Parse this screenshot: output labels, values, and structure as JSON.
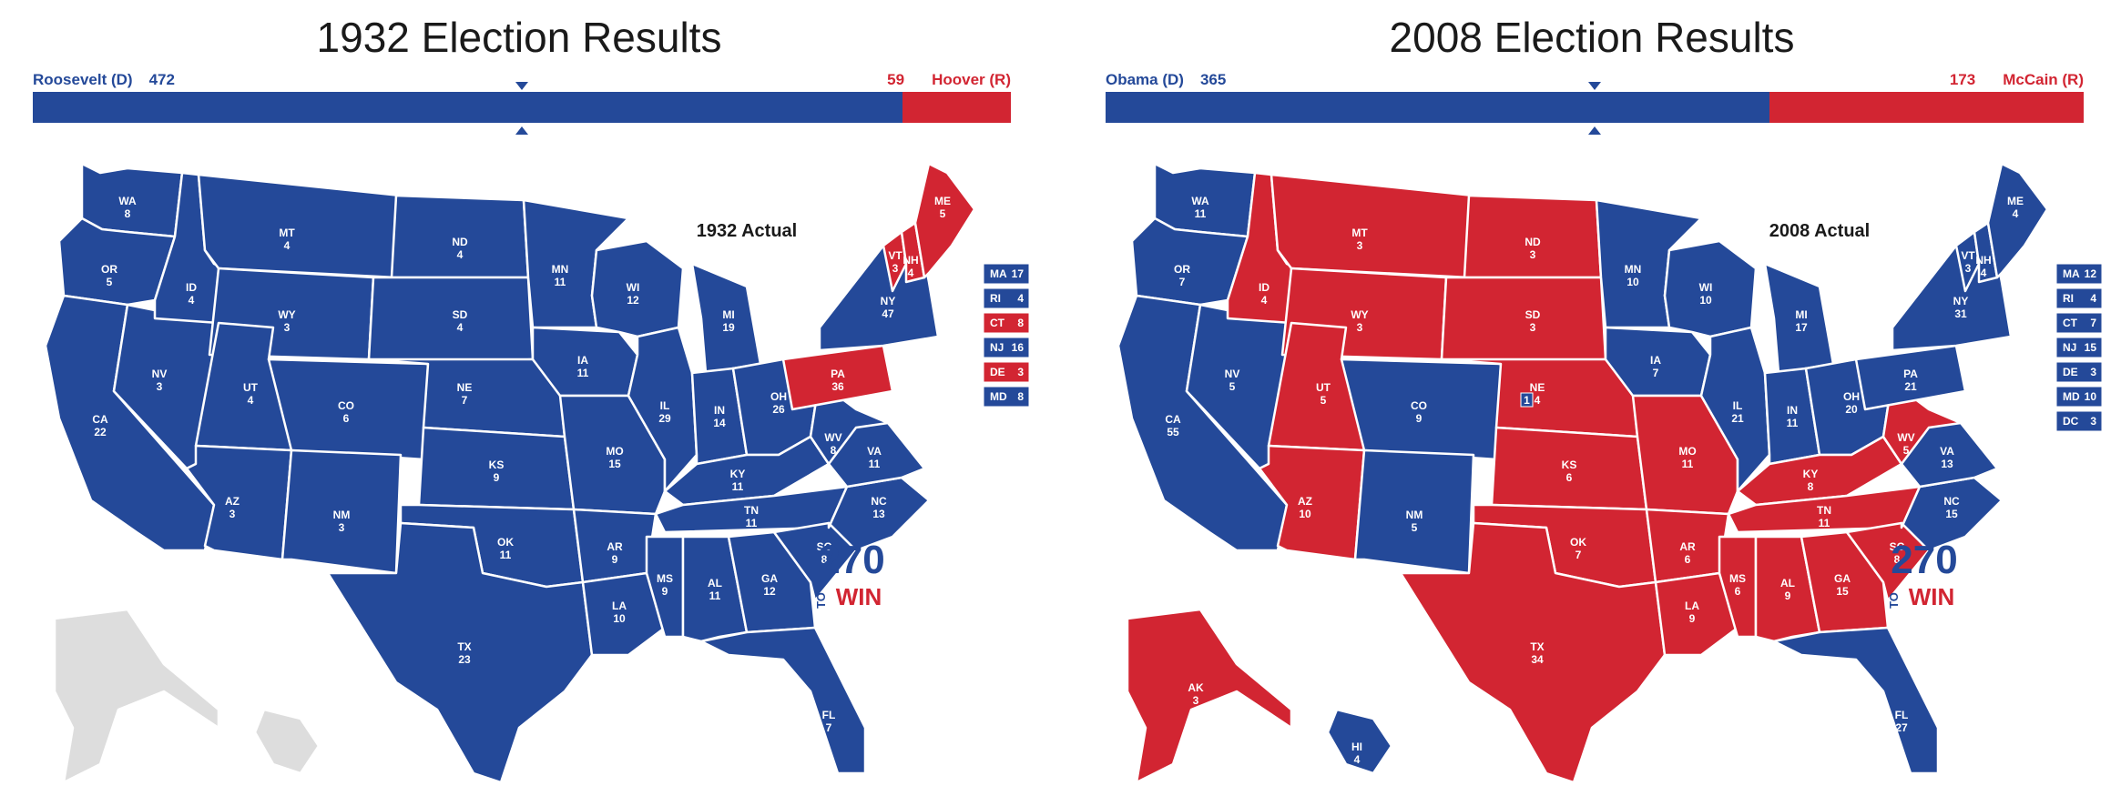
{
  "colors": {
    "dem": "#244999",
    "rep": "#d22532",
    "none": "#dddddd"
  },
  "maps": [
    {
      "title": "1932 Election Results",
      "dem_label": "Roosevelt (D)",
      "dem_votes": "472",
      "rep_label": "Hoover (R)",
      "rep_votes": "59",
      "dem_total": 472,
      "rep_total": 59,
      "actual_label": "1932 Actual",
      "states": {
        "WA": {
          "winner": "D",
          "ev": "8"
        },
        "OR": {
          "winner": "D",
          "ev": "5"
        },
        "CA": {
          "winner": "D",
          "ev": "22"
        },
        "ID": {
          "winner": "D",
          "ev": "4"
        },
        "NV": {
          "winner": "D",
          "ev": "3"
        },
        "MT": {
          "winner": "D",
          "ev": "4"
        },
        "WY": {
          "winner": "D",
          "ev": "3"
        },
        "UT": {
          "winner": "D",
          "ev": "4"
        },
        "AZ": {
          "winner": "D",
          "ev": "3"
        },
        "CO": {
          "winner": "D",
          "ev": "6"
        },
        "NM": {
          "winner": "D",
          "ev": "3"
        },
        "ND": {
          "winner": "D",
          "ev": "4"
        },
        "SD": {
          "winner": "D",
          "ev": "4"
        },
        "NE": {
          "winner": "D",
          "ev": "7"
        },
        "KS": {
          "winner": "D",
          "ev": "9"
        },
        "OK": {
          "winner": "D",
          "ev": "11"
        },
        "TX": {
          "winner": "D",
          "ev": "23"
        },
        "MN": {
          "winner": "D",
          "ev": "11"
        },
        "IA": {
          "winner": "D",
          "ev": "11"
        },
        "MO": {
          "winner": "D",
          "ev": "15"
        },
        "AR": {
          "winner": "D",
          "ev": "9"
        },
        "LA": {
          "winner": "D",
          "ev": "10"
        },
        "WI": {
          "winner": "D",
          "ev": "12"
        },
        "IL": {
          "winner": "D",
          "ev": "29"
        },
        "MI": {
          "winner": "D",
          "ev": "19"
        },
        "IN": {
          "winner": "D",
          "ev": "14"
        },
        "OH": {
          "winner": "D",
          "ev": "26"
        },
        "KY": {
          "winner": "D",
          "ev": "11"
        },
        "TN": {
          "winner": "D",
          "ev": "11"
        },
        "MS": {
          "winner": "D",
          "ev": "9"
        },
        "AL": {
          "winner": "D",
          "ev": "11"
        },
        "GA": {
          "winner": "D",
          "ev": "12"
        },
        "FL": {
          "winner": "D",
          "ev": "7"
        },
        "SC": {
          "winner": "D",
          "ev": "8"
        },
        "NC": {
          "winner": "D",
          "ev": "13"
        },
        "VA": {
          "winner": "D",
          "ev": "11"
        },
        "WV": {
          "winner": "D",
          "ev": "8"
        },
        "PA": {
          "winner": "R",
          "ev": "36"
        },
        "NY": {
          "winner": "D",
          "ev": "47"
        },
        "VT": {
          "winner": "R",
          "ev": "3"
        },
        "NH": {
          "winner": "R",
          "ev": "4"
        },
        "ME": {
          "winner": "R",
          "ev": "5"
        },
        "AK": {
          "winner": "none",
          "ev": ""
        },
        "HI": {
          "winner": "none",
          "ev": ""
        }
      },
      "small_states": [
        {
          "name": "MA",
          "ev": "17",
          "winner": "D"
        },
        {
          "name": "RI",
          "ev": "4",
          "winner": "D"
        },
        {
          "name": "CT",
          "ev": "8",
          "winner": "R"
        },
        {
          "name": "NJ",
          "ev": "16",
          "winner": "D"
        },
        {
          "name": "DE",
          "ev": "3",
          "winner": "R"
        },
        {
          "name": "MD",
          "ev": "8",
          "winner": "D"
        }
      ],
      "logo": {
        "number": "270",
        "to": "TO",
        "win": "WIN"
      }
    },
    {
      "title": "2008 Election Results",
      "dem_label": "Obama (D)",
      "dem_votes": "365",
      "rep_label": "McCain (R)",
      "rep_votes": "173",
      "dem_total": 365,
      "rep_total": 173,
      "actual_label": "2008 Actual",
      "states": {
        "WA": {
          "winner": "D",
          "ev": "11"
        },
        "OR": {
          "winner": "D",
          "ev": "7"
        },
        "CA": {
          "winner": "D",
          "ev": "55"
        },
        "ID": {
          "winner": "R",
          "ev": "4"
        },
        "NV": {
          "winner": "D",
          "ev": "5"
        },
        "MT": {
          "winner": "R",
          "ev": "3"
        },
        "WY": {
          "winner": "R",
          "ev": "3"
        },
        "UT": {
          "winner": "R",
          "ev": "5"
        },
        "AZ": {
          "winner": "R",
          "ev": "10"
        },
        "CO": {
          "winner": "D",
          "ev": "9"
        },
        "NM": {
          "winner": "D",
          "ev": "5"
        },
        "ND": {
          "winner": "R",
          "ev": "3"
        },
        "SD": {
          "winner": "R",
          "ev": "3"
        },
        "NE": {
          "winner": "R",
          "ev": "4",
          "split": "1"
        },
        "KS": {
          "winner": "R",
          "ev": "6"
        },
        "OK": {
          "winner": "R",
          "ev": "7"
        },
        "TX": {
          "winner": "R",
          "ev": "34"
        },
        "MN": {
          "winner": "D",
          "ev": "10"
        },
        "IA": {
          "winner": "D",
          "ev": "7"
        },
        "MO": {
          "winner": "R",
          "ev": "11"
        },
        "AR": {
          "winner": "R",
          "ev": "6"
        },
        "LA": {
          "winner": "R",
          "ev": "9"
        },
        "WI": {
          "winner": "D",
          "ev": "10"
        },
        "IL": {
          "winner": "D",
          "ev": "21"
        },
        "MI": {
          "winner": "D",
          "ev": "17"
        },
        "IN": {
          "winner": "D",
          "ev": "11"
        },
        "OH": {
          "winner": "D",
          "ev": "20"
        },
        "KY": {
          "winner": "R",
          "ev": "8"
        },
        "TN": {
          "winner": "R",
          "ev": "11"
        },
        "MS": {
          "winner": "R",
          "ev": "6"
        },
        "AL": {
          "winner": "R",
          "ev": "9"
        },
        "GA": {
          "winner": "R",
          "ev": "15"
        },
        "FL": {
          "winner": "D",
          "ev": "27"
        },
        "SC": {
          "winner": "R",
          "ev": "8"
        },
        "NC": {
          "winner": "D",
          "ev": "15"
        },
        "VA": {
          "winner": "D",
          "ev": "13"
        },
        "WV": {
          "winner": "R",
          "ev": "5"
        },
        "PA": {
          "winner": "D",
          "ev": "21"
        },
        "NY": {
          "winner": "D",
          "ev": "31"
        },
        "VT": {
          "winner": "D",
          "ev": "3"
        },
        "NH": {
          "winner": "D",
          "ev": "4"
        },
        "ME": {
          "winner": "D",
          "ev": "4"
        },
        "AK": {
          "winner": "R",
          "ev": "3"
        },
        "HI": {
          "winner": "D",
          "ev": "4"
        }
      },
      "small_states": [
        {
          "name": "MA",
          "ev": "12",
          "winner": "D"
        },
        {
          "name": "RI",
          "ev": "4",
          "winner": "D"
        },
        {
          "name": "CT",
          "ev": "7",
          "winner": "D"
        },
        {
          "name": "NJ",
          "ev": "15",
          "winner": "D"
        },
        {
          "name": "DE",
          "ev": "3",
          "winner": "D"
        },
        {
          "name": "MD",
          "ev": "10",
          "winner": "D"
        },
        {
          "name": "DC",
          "ev": "3",
          "winner": "D"
        }
      ],
      "logo": {
        "number": "270",
        "to": "TO",
        "win": "WIN"
      }
    }
  ]
}
